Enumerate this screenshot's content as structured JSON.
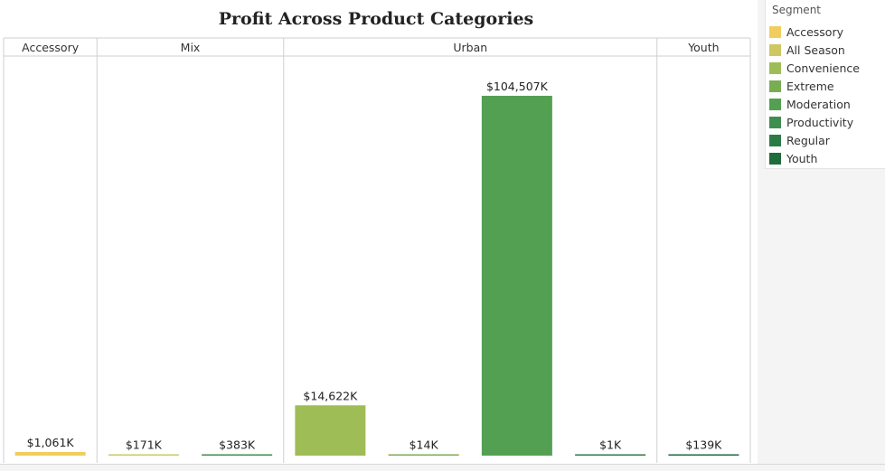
{
  "chart_data": {
    "type": "bar",
    "title": "Profit Across Product Categories",
    "panels": [
      {
        "name": "Accessory",
        "bars": [
          {
            "segment": "Accessory",
            "value": 1061,
            "label": "$1,061K"
          }
        ]
      },
      {
        "name": "Mix",
        "bars": [
          {
            "segment": "All Season",
            "value": 171,
            "label": "$171K"
          },
          {
            "segment": "Productivity",
            "value": 383,
            "label": "$383K"
          }
        ]
      },
      {
        "name": "Urban",
        "bars": [
          {
            "segment": "Convenience",
            "value": 14622,
            "label": "$14,622K"
          },
          {
            "segment": "Extreme",
            "value": 14,
            "label": "$14K"
          },
          {
            "segment": "Moderation",
            "value": 104507,
            "label": "$104,507K"
          },
          {
            "segment": "Regular",
            "value": 1,
            "label": "$1K"
          }
        ]
      },
      {
        "name": "Youth",
        "bars": [
          {
            "segment": "Youth",
            "value": 139,
            "label": "$139K"
          }
        ]
      }
    ],
    "ylim": [
      0,
      115000
    ],
    "grid": false,
    "legend": {
      "title": "Segment",
      "position": "right",
      "items": [
        {
          "name": "Accessory",
          "color": "#f2cd5d"
        },
        {
          "name": "All Season",
          "color": "#cfc761"
        },
        {
          "name": "Convenience",
          "color": "#9fbd56"
        },
        {
          "name": "Extreme",
          "color": "#79ad52"
        },
        {
          "name": "Moderation",
          "color": "#54a052"
        },
        {
          "name": "Productivity",
          "color": "#3e8e4f"
        },
        {
          "name": "Regular",
          "color": "#2b7b47"
        },
        {
          "name": "Youth",
          "color": "#1e6b3c"
        }
      ]
    }
  }
}
